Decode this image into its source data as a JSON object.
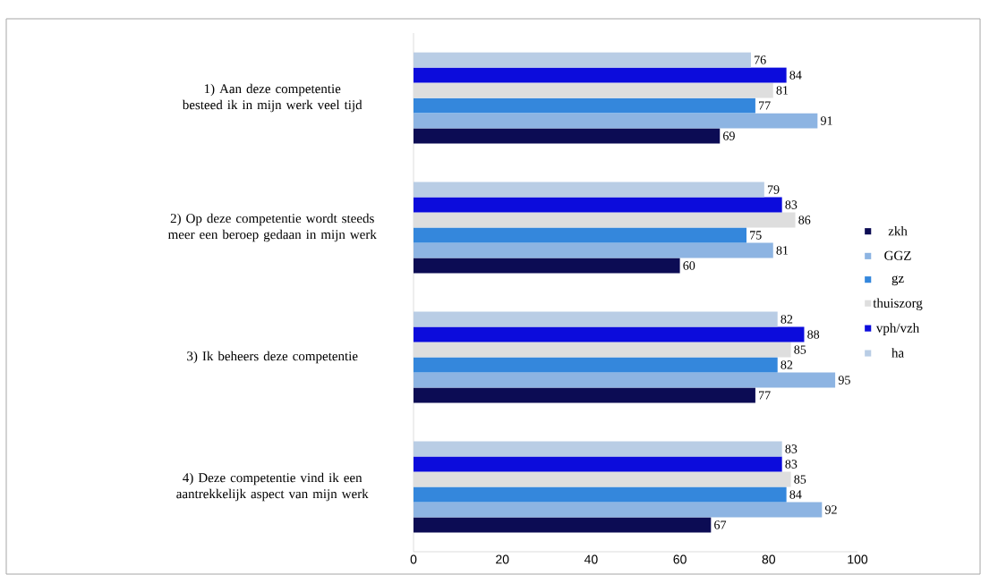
{
  "chart_data": {
    "type": "bar",
    "orientation": "horizontal",
    "categories": [
      "1) Aan deze competentie besteed ik in mijn werk veel tijd",
      "2) Op deze competentie wordt steeds meer een beroep gedaan in mijn werk",
      "3) Ik beheers deze competentie",
      "4) Deze competentie vind ik een aantrekkelijk aspect van mijn werk"
    ],
    "series": [
      {
        "name": "zkh",
        "color": "#0c0c54",
        "values": [
          69,
          60,
          77,
          67
        ]
      },
      {
        "name": "GGZ",
        "color": "#8db4e2",
        "values": [
          91,
          81,
          95,
          92
        ]
      },
      {
        "name": "gz",
        "color": "#3487dc",
        "values": [
          77,
          75,
          82,
          84
        ]
      },
      {
        "name": "thuiszorg",
        "color": "#dedede",
        "values": [
          81,
          86,
          85,
          85
        ]
      },
      {
        "name": "vph/vzh",
        "color": "#0c0cdc",
        "values": [
          84,
          83,
          88,
          83
        ]
      },
      {
        "name": "ha",
        "color": "#b9cde5",
        "values": [
          76,
          79,
          82,
          83
        ]
      }
    ],
    "xlim": [
      0,
      100
    ],
    "xticks": [
      0,
      20,
      40,
      60,
      80,
      100
    ],
    "data_labels": true,
    "legend": "right",
    "grid": false
  }
}
